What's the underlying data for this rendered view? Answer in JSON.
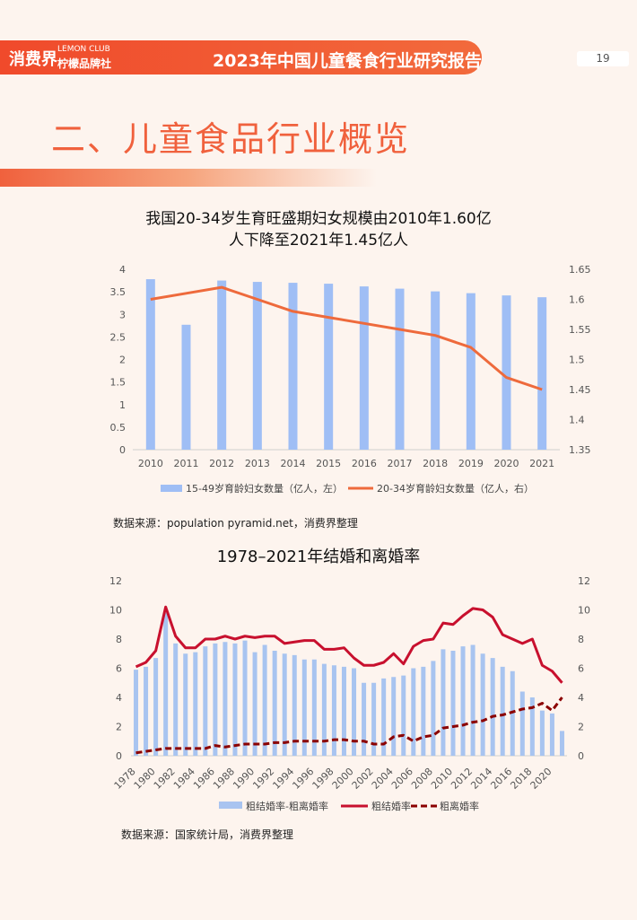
{
  "header": {
    "logo": "消费界",
    "logo_sub_en": "LEMON CLUB",
    "logo_sub_cn": "柠檬品牌社",
    "report_title": "2023年中国儿童餐食行业研究报告",
    "page_number": "19"
  },
  "section_title": "二、儿童食品行业概览",
  "chart1_source": "数据来源：population pyramid.net，消费界整理",
  "chart2_source": "数据来源：国家统计局，消费界整理",
  "chart_data": [
    {
      "type": "bar",
      "title_line1": "我国20-34岁生育旺盛期妇女规模由2010年1.60亿",
      "title_line2": "人下降至2021年1.45亿人",
      "categories": [
        "2010",
        "2011",
        "2012",
        "2013",
        "2014",
        "2015",
        "2016",
        "2017",
        "2018",
        "2019",
        "2020",
        "2021"
      ],
      "series": [
        {
          "name": "15-49岁育龄妇女数量（亿人，左）",
          "type": "bar",
          "axis": "left",
          "color": "#9fbef5",
          "values": [
            3.78,
            2.77,
            3.75,
            3.72,
            3.7,
            3.68,
            3.62,
            3.57,
            3.51,
            3.47,
            3.42,
            3.38
          ]
        },
        {
          "name": "20-34岁育龄妇女数量（亿人，右）",
          "type": "line",
          "axis": "right",
          "color": "#ee6a3c",
          "values": [
            1.6,
            1.61,
            1.62,
            1.6,
            1.58,
            1.57,
            1.56,
            1.55,
            1.54,
            1.52,
            1.47,
            1.45
          ]
        }
      ],
      "y_left": {
        "min": 0,
        "max": 4,
        "ticks": [
          "0",
          "0.5",
          "1",
          "1.5",
          "2",
          "2.5",
          "3",
          "3.5",
          "4"
        ]
      },
      "y_right": {
        "min": 1.35,
        "max": 1.65,
        "ticks": [
          "1.35",
          "1.4",
          "1.45",
          "1.5",
          "1.55",
          "1.6",
          "1.65"
        ]
      }
    },
    {
      "type": "bar",
      "title": "1978–2021年结婚和离婚率",
      "years": [
        1978,
        1979,
        1980,
        1981,
        1982,
        1983,
        1984,
        1985,
        1986,
        1987,
        1988,
        1989,
        1990,
        1991,
        1992,
        1993,
        1994,
        1995,
        1996,
        1997,
        1998,
        1999,
        2000,
        2001,
        2002,
        2003,
        2004,
        2005,
        2006,
        2007,
        2008,
        2009,
        2010,
        2011,
        2012,
        2013,
        2014,
        2015,
        2016,
        2017,
        2018,
        2019,
        2020,
        2021
      ],
      "x_tick_labels": [
        "1978",
        "1980",
        "1982",
        "1984",
        "1986",
        "1988",
        "1990",
        "1992",
        "1994",
        "1996",
        "1998",
        "2000",
        "2002",
        "2004",
        "2006",
        "2008",
        "2010",
        "2012",
        "2014",
        "2016",
        "2018",
        "2020"
      ],
      "series": [
        {
          "name": "粗结婚率-粗离婚率",
          "type": "bar",
          "color": "#a8c4f0",
          "values": [
            5.9,
            6.1,
            6.7,
            9.8,
            7.7,
            7.0,
            7.1,
            7.5,
            7.7,
            7.8,
            7.7,
            7.9,
            7.1,
            7.6,
            7.2,
            7.0,
            6.9,
            6.6,
            6.6,
            6.3,
            6.2,
            6.1,
            6.0,
            5.0,
            5.0,
            5.3,
            5.4,
            5.5,
            6.0,
            6.1,
            6.5,
            7.3,
            7.2,
            7.5,
            7.6,
            7.0,
            6.7,
            6.1,
            5.8,
            4.4,
            4.0,
            3.1,
            2.9,
            1.7
          ]
        },
        {
          "name": "粗结婚率",
          "type": "line",
          "color": "#c8102e",
          "values": [
            6.1,
            6.4,
            7.2,
            10.2,
            8.2,
            7.4,
            7.4,
            8.0,
            8.0,
            8.2,
            8.0,
            8.2,
            8.1,
            8.2,
            8.2,
            7.7,
            7.8,
            7.9,
            7.9,
            7.3,
            7.3,
            7.4,
            6.7,
            6.2,
            6.2,
            6.4,
            7.0,
            6.3,
            7.5,
            7.9,
            8.0,
            9.1,
            9.0,
            9.6,
            10.1,
            10.0,
            9.5,
            8.3,
            8.0,
            7.7,
            8.0,
            6.2,
            5.8,
            5.0
          ]
        },
        {
          "name": "粗离婚率",
          "type": "dashed-line",
          "color": "#8b0000",
          "values": [
            0.2,
            0.3,
            0.4,
            0.5,
            0.5,
            0.5,
            0.5,
            0.5,
            0.7,
            0.6,
            0.7,
            0.8,
            0.8,
            0.8,
            0.9,
            0.9,
            1.0,
            1.0,
            1.0,
            1.0,
            1.1,
            1.1,
            1.0,
            1.0,
            0.8,
            0.8,
            1.3,
            1.4,
            1.0,
            1.3,
            1.4,
            1.9,
            2.0,
            2.1,
            2.3,
            2.4,
            2.7,
            2.8,
            3.0,
            3.2,
            3.3,
            3.6,
            3.1,
            4.0
          ]
        }
      ],
      "y_left": {
        "min": 0,
        "max": 12,
        "ticks": [
          "0",
          "2",
          "4",
          "6",
          "8",
          "10",
          "12"
        ]
      },
      "y_right": {
        "min": 0,
        "max": 12,
        "ticks": [
          "0",
          "2",
          "4",
          "6",
          "8",
          "10",
          "12"
        ]
      }
    }
  ]
}
